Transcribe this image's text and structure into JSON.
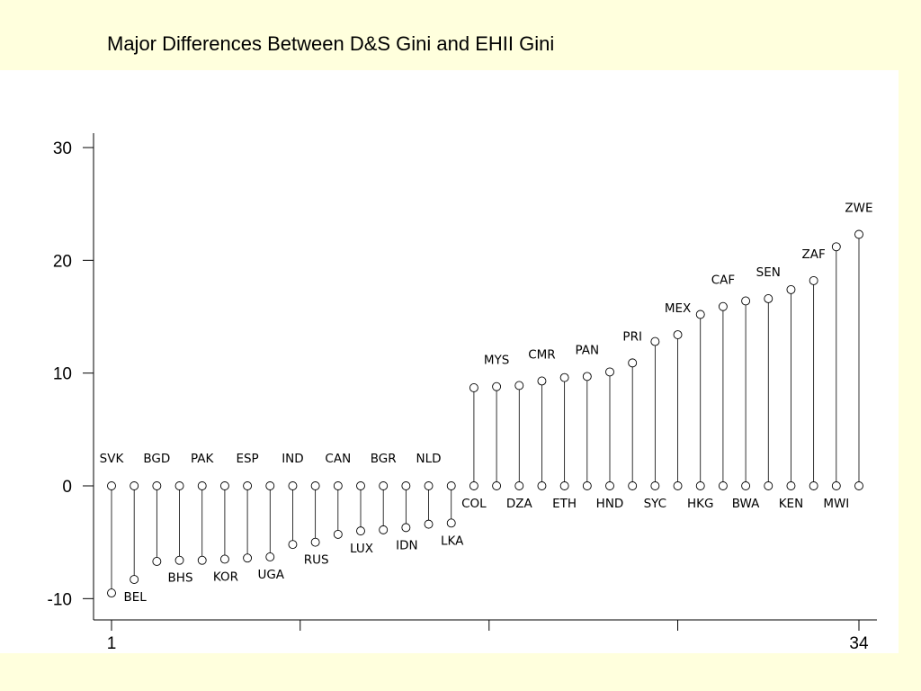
{
  "title": "Major Differences Between D&S Gini and EHII Gini",
  "chart_data": {
    "type": "scatter",
    "style": "dropline",
    "title": "Major Differences Between D&S Gini and EHII Gini",
    "xlabel": "",
    "ylabel": "",
    "xlim": [
      1,
      34
    ],
    "ylim": [
      -12,
      30
    ],
    "yticks": [
      -10,
      0,
      10,
      20,
      30
    ],
    "xtick_labels": [
      "1",
      "34"
    ],
    "xtick_minor": [
      9.33,
      17.67,
      26
    ],
    "grid": false,
    "legend": "none",
    "points": [
      {
        "label": "SVK",
        "value": -9.5,
        "label_pos": "above"
      },
      {
        "label": "BEL",
        "value": -8.3,
        "label_pos": "below"
      },
      {
        "label": "BGD",
        "value": -6.7,
        "label_pos": "above"
      },
      {
        "label": "BHS",
        "value": -6.6,
        "label_pos": "below"
      },
      {
        "label": "PAK",
        "value": -6.6,
        "label_pos": "above"
      },
      {
        "label": "KOR",
        "value": -6.5,
        "label_pos": "below"
      },
      {
        "label": "ESP",
        "value": -6.4,
        "label_pos": "above"
      },
      {
        "label": "UGA",
        "value": -6.3,
        "label_pos": "below"
      },
      {
        "label": "IND",
        "value": -5.2,
        "label_pos": "above"
      },
      {
        "label": "RUS",
        "value": -5.0,
        "label_pos": "below"
      },
      {
        "label": "CAN",
        "value": -4.3,
        "label_pos": "above"
      },
      {
        "label": "LUX",
        "value": -4.0,
        "label_pos": "below"
      },
      {
        "label": "BGR",
        "value": -3.9,
        "label_pos": "above"
      },
      {
        "label": "IDN",
        "value": -3.7,
        "label_pos": "below"
      },
      {
        "label": "NLD",
        "value": -3.4,
        "label_pos": "above"
      },
      {
        "label": "LKA",
        "value": -3.3,
        "label_pos": "below"
      },
      {
        "label": "COL",
        "value": 8.7,
        "label_pos": "below"
      },
      {
        "label": "MYS",
        "value": 8.8,
        "label_pos": "above"
      },
      {
        "label": "DZA",
        "value": 8.9,
        "label_pos": "below"
      },
      {
        "label": "CMR",
        "value": 9.3,
        "label_pos": "above"
      },
      {
        "label": "ETH",
        "value": 9.6,
        "label_pos": "below"
      },
      {
        "label": "PAN",
        "value": 9.7,
        "label_pos": "above"
      },
      {
        "label": "HND",
        "value": 10.1,
        "label_pos": "below"
      },
      {
        "label": "PRI",
        "value": 10.9,
        "label_pos": "above"
      },
      {
        "label": "SYC",
        "value": 12.8,
        "label_pos": "below"
      },
      {
        "label": "MEX",
        "value": 13.4,
        "label_pos": "above"
      },
      {
        "label": "HKG",
        "value": 15.2,
        "label_pos": "below"
      },
      {
        "label": "CAF",
        "value": 15.9,
        "label_pos": "above"
      },
      {
        "label": "BWA",
        "value": 16.4,
        "label_pos": "below"
      },
      {
        "label": "SEN",
        "value": 16.6,
        "label_pos": "above"
      },
      {
        "label": "KEN",
        "value": 17.4,
        "label_pos": "below"
      },
      {
        "label": "ZAF",
        "value": 18.2,
        "label_pos": "above"
      },
      {
        "label": "MWI",
        "value": 21.2,
        "label_pos": "below"
      },
      {
        "label": "ZWE",
        "value": 22.3,
        "label_pos": "above"
      }
    ]
  }
}
